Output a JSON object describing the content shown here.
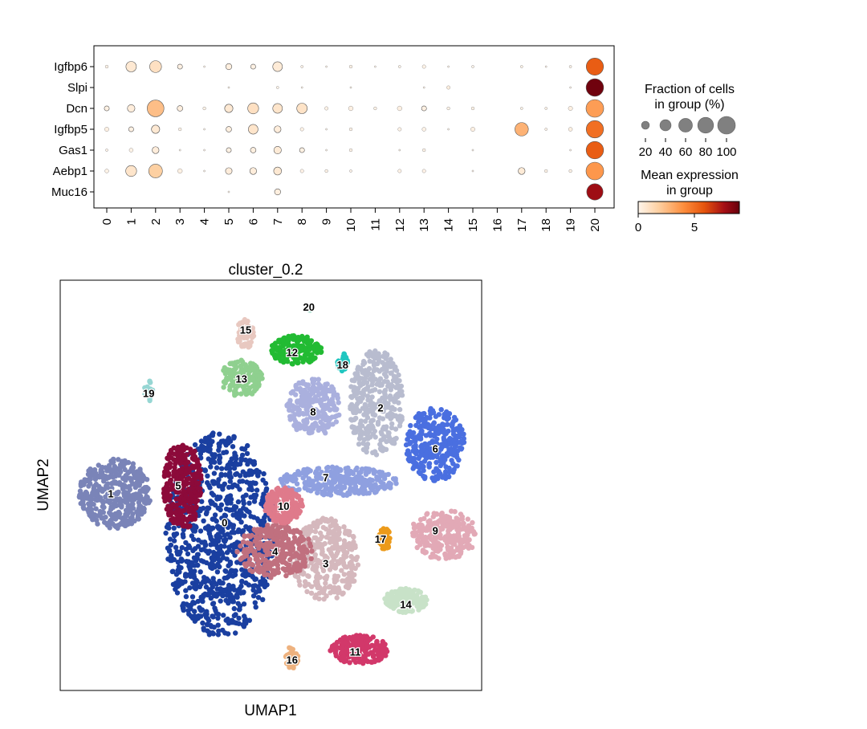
{
  "chart_data": [
    {
      "type": "dotplot",
      "genes": [
        "Igfbp6",
        "Slpi",
        "Dcn",
        "Igfbp5",
        "Gas1",
        "Aebp1",
        "Muc16"
      ],
      "clusters": [
        "0",
        "1",
        "2",
        "3",
        "4",
        "5",
        "6",
        "7",
        "8",
        "9",
        "10",
        "11",
        "12",
        "13",
        "14",
        "15",
        "16",
        "17",
        "18",
        "19",
        "20"
      ],
      "xlabel": "cluster_0.2",
      "fraction": [
        [
          3,
          35,
          45,
          8,
          1,
          12,
          8,
          30,
          2,
          1,
          3,
          1,
          2,
          4,
          1,
          2,
          0,
          2,
          1,
          2,
          95
        ],
        [
          0,
          0,
          0,
          0,
          0,
          1,
          0,
          2,
          1,
          0,
          1,
          0,
          0,
          1,
          4,
          0,
          0,
          0,
          0,
          1,
          98
        ],
        [
          8,
          18,
          90,
          10,
          3,
          22,
          38,
          30,
          35,
          4,
          7,
          3,
          7,
          8,
          3,
          3,
          0,
          2,
          2,
          6,
          100
        ],
        [
          6,
          8,
          22,
          3,
          1,
          10,
          30,
          15,
          4,
          1,
          3,
          0,
          4,
          5,
          1,
          6,
          0,
          58,
          2,
          5,
          96
        ],
        [
          2,
          5,
          15,
          1,
          1,
          8,
          10,
          18,
          8,
          1,
          3,
          0,
          1,
          3,
          0,
          1,
          0,
          0,
          0,
          1,
          97
        ],
        [
          5,
          38,
          60,
          7,
          1,
          14,
          15,
          20,
          4,
          3,
          2,
          0,
          4,
          4,
          0,
          1,
          0,
          15,
          3,
          3,
          100
        ],
        [
          0,
          0,
          0,
          0,
          0,
          1,
          0,
          12,
          0,
          0,
          0,
          0,
          0,
          0,
          0,
          0,
          0,
          0,
          0,
          0,
          85
        ]
      ],
      "mean_expression": [
        [
          0.1,
          0.6,
          1.0,
          0.2,
          0.05,
          0.3,
          0.2,
          0.5,
          0.05,
          0.05,
          0.1,
          0.05,
          0.05,
          0.1,
          0.05,
          0.05,
          0,
          0.1,
          0.05,
          0.05,
          5.6
        ],
        [
          0,
          0,
          0,
          0,
          0,
          0.05,
          0,
          0.05,
          0.05,
          0,
          0.05,
          0,
          0,
          0.05,
          0.3,
          0,
          0,
          0,
          0,
          0.05,
          8.8
        ],
        [
          0.2,
          0.4,
          2.4,
          0.3,
          0.1,
          0.6,
          1.0,
          0.8,
          0.9,
          0.1,
          0.2,
          0.1,
          0.2,
          0.2,
          0.1,
          0.1,
          0,
          0.1,
          0.1,
          0.2,
          3.5
        ],
        [
          0.2,
          0.2,
          0.6,
          0.1,
          0.05,
          0.3,
          0.8,
          0.4,
          0.1,
          0.05,
          0.1,
          0,
          0.1,
          0.1,
          0.05,
          0.2,
          0,
          2.8,
          0.1,
          0.2,
          5.0
        ],
        [
          0.05,
          0.1,
          0.4,
          0.05,
          0.05,
          0.2,
          0.3,
          0.5,
          0.2,
          0.05,
          0.1,
          0,
          0.05,
          0.1,
          0,
          0.05,
          0,
          0,
          0,
          0.05,
          5.6
        ],
        [
          0.1,
          0.8,
          1.8,
          0.2,
          0.05,
          0.4,
          0.4,
          0.6,
          0.1,
          0.1,
          0.05,
          0,
          0.1,
          0.1,
          0,
          0.05,
          0,
          0.5,
          0.1,
          0.1,
          3.7
        ],
        [
          0,
          0,
          0,
          0,
          0,
          0.05,
          0,
          0.3,
          0,
          0,
          0,
          0,
          0,
          0,
          0,
          0,
          0,
          0,
          0,
          0,
          7.8
        ]
      ],
      "legend": {
        "size_title_1": "Fraction of cells",
        "size_title_2": "in group (%)",
        "size_ticks": [
          20,
          40,
          60,
          80,
          100
        ],
        "color_title_1": "Mean expression",
        "color_title_2": "in group",
        "color_ticks": [
          0,
          5
        ],
        "color_max": 9
      },
      "colors": [
        "#fff5eb",
        "#fdd0a2",
        "#fd8d3c",
        "#e6550d",
        "#a50f15",
        "#67000d"
      ]
    },
    {
      "type": "scatter",
      "xlabel": "UMAP1",
      "ylabel": "UMAP2",
      "xlim": [
        0,
        100
      ],
      "ylim": [
        0,
        100
      ],
      "clusters": [
        {
          "id": "0",
          "color": "#1a3fa0",
          "cx": 38,
          "cy": 38,
          "rx": 13,
          "ry": 25,
          "n": 900,
          "label_x": 39,
          "label_y": 41
        },
        {
          "id": "1",
          "color": "#7a84b8",
          "cx": 13,
          "cy": 48,
          "rx": 8.5,
          "ry": 8.5,
          "n": 380,
          "label_x": 12,
          "label_y": 48
        },
        {
          "id": "2",
          "color": "#b8bccf",
          "cx": 75,
          "cy": 70,
          "rx": 6.5,
          "ry": 13,
          "n": 350,
          "label_x": 76,
          "label_y": 69
        },
        {
          "id": "3",
          "color": "#d5b8bd",
          "cx": 63,
          "cy": 32,
          "rx": 8,
          "ry": 10,
          "n": 320,
          "label_x": 63,
          "label_y": 31
        },
        {
          "id": "4",
          "color": "#c0707f",
          "cx": 51,
          "cy": 34,
          "rx": 9,
          "ry": 6.5,
          "n": 300,
          "label_x": 51,
          "label_y": 34
        },
        {
          "id": "5",
          "color": "#8c0a3a",
          "cx": 29,
          "cy": 50,
          "rx": 4.5,
          "ry": 11,
          "n": 300,
          "label_x": 28,
          "label_y": 50
        },
        {
          "id": "6",
          "color": "#4a6fe0",
          "cx": 89,
          "cy": 60,
          "rx": 7,
          "ry": 9,
          "n": 300,
          "label_x": 89,
          "label_y": 59
        },
        {
          "id": "7",
          "color": "#8fa0e0",
          "cx": 66,
          "cy": 51,
          "rx": 14,
          "ry": 3.5,
          "n": 260,
          "label_x": 63,
          "label_y": 52
        },
        {
          "id": "8",
          "color": "#aab0de",
          "cx": 60,
          "cy": 69,
          "rx": 6.5,
          "ry": 7,
          "n": 240,
          "label_x": 60,
          "label_y": 68
        },
        {
          "id": "9",
          "color": "#e2a9b6",
          "cx": 91,
          "cy": 38,
          "rx": 8,
          "ry": 6,
          "n": 260,
          "label_x": 89,
          "label_y": 39
        },
        {
          "id": "10",
          "color": "#df7a8b",
          "cx": 53,
          "cy": 45,
          "rx": 4.5,
          "ry": 4.5,
          "n": 180,
          "label_x": 53,
          "label_y": 45
        },
        {
          "id": "11",
          "color": "#d2386a",
          "cx": 71,
          "cy": 10,
          "rx": 7,
          "ry": 3.5,
          "n": 180,
          "label_x": 70,
          "label_y": 9.5
        },
        {
          "id": "12",
          "color": "#22bb33",
          "cx": 56,
          "cy": 83,
          "rx": 6,
          "ry": 3.5,
          "n": 180,
          "label_x": 55,
          "label_y": 82.5
        },
        {
          "id": "13",
          "color": "#8fd08f",
          "cx": 43,
          "cy": 76,
          "rx": 5,
          "ry": 4.5,
          "n": 140,
          "label_x": 43,
          "label_y": 76
        },
        {
          "id": "14",
          "color": "#c8e2c8",
          "cx": 82,
          "cy": 22,
          "rx": 5,
          "ry": 3,
          "n": 140,
          "label_x": 82,
          "label_y": 21
        },
        {
          "id": "15",
          "color": "#e8c8c0",
          "cx": 44,
          "cy": 87,
          "rx": 2.2,
          "ry": 3.5,
          "n": 60,
          "label_x": 44,
          "label_y": 88
        },
        {
          "id": "16",
          "color": "#eeb27f",
          "cx": 55,
          "cy": 8,
          "rx": 1.5,
          "ry": 3,
          "n": 40,
          "label_x": 55,
          "label_y": 7.5
        },
        {
          "id": "17",
          "color": "#ec9a1a",
          "cx": 77,
          "cy": 37,
          "rx": 1.4,
          "ry": 2.8,
          "n": 40,
          "label_x": 76,
          "label_y": 37
        },
        {
          "id": "18",
          "color": "#20c6c0",
          "cx": 67,
          "cy": 80,
          "rx": 1.3,
          "ry": 2.2,
          "n": 30,
          "label_x": 67,
          "label_y": 79.5
        },
        {
          "id": "19",
          "color": "#96d6d3",
          "cx": 21,
          "cy": 73,
          "rx": 1,
          "ry": 2.5,
          "n": 25,
          "label_x": 21,
          "label_y": 72.5
        },
        {
          "id": "20",
          "color": "#aee0d0",
          "cx": 59,
          "cy": 93,
          "rx": 0.5,
          "ry": 0.5,
          "n": 5,
          "label_x": 59,
          "label_y": 93.5
        }
      ]
    }
  ]
}
